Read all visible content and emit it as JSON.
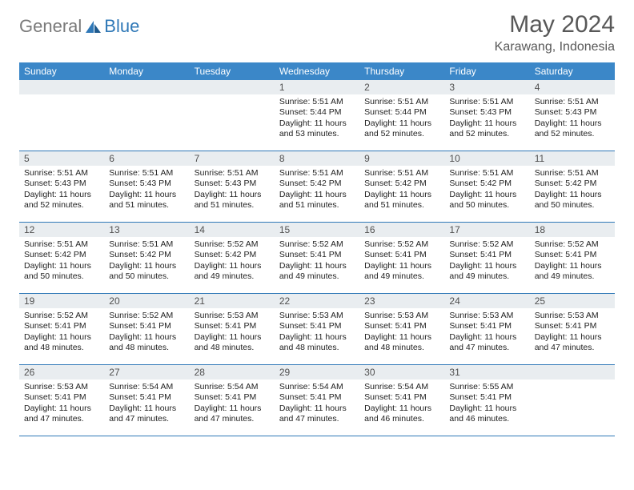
{
  "logo": {
    "part1": "General",
    "part2": "Blue"
  },
  "title": "May 2024",
  "location": "Karawang, Indonesia",
  "colors": {
    "header_bg": "#3b87c8",
    "header_text": "#ffffff",
    "daynum_bg": "#e9edf0",
    "daynum_text": "#505050",
    "body_text": "#222222",
    "title_text": "#585858",
    "rule": "#2f78b7",
    "logo_gray": "#7a7a7a",
    "logo_blue": "#2f78b7",
    "page_bg": "#ffffff"
  },
  "weekdays": [
    "Sunday",
    "Monday",
    "Tuesday",
    "Wednesday",
    "Thursday",
    "Friday",
    "Saturday"
  ],
  "weeks": [
    [
      {
        "n": "",
        "sr": "",
        "ss": "",
        "dl": ""
      },
      {
        "n": "",
        "sr": "",
        "ss": "",
        "dl": ""
      },
      {
        "n": "",
        "sr": "",
        "ss": "",
        "dl": ""
      },
      {
        "n": "1",
        "sr": "Sunrise: 5:51 AM",
        "ss": "Sunset: 5:44 PM",
        "dl": "Daylight: 11 hours and 53 minutes."
      },
      {
        "n": "2",
        "sr": "Sunrise: 5:51 AM",
        "ss": "Sunset: 5:44 PM",
        "dl": "Daylight: 11 hours and 52 minutes."
      },
      {
        "n": "3",
        "sr": "Sunrise: 5:51 AM",
        "ss": "Sunset: 5:43 PM",
        "dl": "Daylight: 11 hours and 52 minutes."
      },
      {
        "n": "4",
        "sr": "Sunrise: 5:51 AM",
        "ss": "Sunset: 5:43 PM",
        "dl": "Daylight: 11 hours and 52 minutes."
      }
    ],
    [
      {
        "n": "5",
        "sr": "Sunrise: 5:51 AM",
        "ss": "Sunset: 5:43 PM",
        "dl": "Daylight: 11 hours and 52 minutes."
      },
      {
        "n": "6",
        "sr": "Sunrise: 5:51 AM",
        "ss": "Sunset: 5:43 PM",
        "dl": "Daylight: 11 hours and 51 minutes."
      },
      {
        "n": "7",
        "sr": "Sunrise: 5:51 AM",
        "ss": "Sunset: 5:43 PM",
        "dl": "Daylight: 11 hours and 51 minutes."
      },
      {
        "n": "8",
        "sr": "Sunrise: 5:51 AM",
        "ss": "Sunset: 5:42 PM",
        "dl": "Daylight: 11 hours and 51 minutes."
      },
      {
        "n": "9",
        "sr": "Sunrise: 5:51 AM",
        "ss": "Sunset: 5:42 PM",
        "dl": "Daylight: 11 hours and 51 minutes."
      },
      {
        "n": "10",
        "sr": "Sunrise: 5:51 AM",
        "ss": "Sunset: 5:42 PM",
        "dl": "Daylight: 11 hours and 50 minutes."
      },
      {
        "n": "11",
        "sr": "Sunrise: 5:51 AM",
        "ss": "Sunset: 5:42 PM",
        "dl": "Daylight: 11 hours and 50 minutes."
      }
    ],
    [
      {
        "n": "12",
        "sr": "Sunrise: 5:51 AM",
        "ss": "Sunset: 5:42 PM",
        "dl": "Daylight: 11 hours and 50 minutes."
      },
      {
        "n": "13",
        "sr": "Sunrise: 5:51 AM",
        "ss": "Sunset: 5:42 PM",
        "dl": "Daylight: 11 hours and 50 minutes."
      },
      {
        "n": "14",
        "sr": "Sunrise: 5:52 AM",
        "ss": "Sunset: 5:42 PM",
        "dl": "Daylight: 11 hours and 49 minutes."
      },
      {
        "n": "15",
        "sr": "Sunrise: 5:52 AM",
        "ss": "Sunset: 5:41 PM",
        "dl": "Daylight: 11 hours and 49 minutes."
      },
      {
        "n": "16",
        "sr": "Sunrise: 5:52 AM",
        "ss": "Sunset: 5:41 PM",
        "dl": "Daylight: 11 hours and 49 minutes."
      },
      {
        "n": "17",
        "sr": "Sunrise: 5:52 AM",
        "ss": "Sunset: 5:41 PM",
        "dl": "Daylight: 11 hours and 49 minutes."
      },
      {
        "n": "18",
        "sr": "Sunrise: 5:52 AM",
        "ss": "Sunset: 5:41 PM",
        "dl": "Daylight: 11 hours and 49 minutes."
      }
    ],
    [
      {
        "n": "19",
        "sr": "Sunrise: 5:52 AM",
        "ss": "Sunset: 5:41 PM",
        "dl": "Daylight: 11 hours and 48 minutes."
      },
      {
        "n": "20",
        "sr": "Sunrise: 5:52 AM",
        "ss": "Sunset: 5:41 PM",
        "dl": "Daylight: 11 hours and 48 minutes."
      },
      {
        "n": "21",
        "sr": "Sunrise: 5:53 AM",
        "ss": "Sunset: 5:41 PM",
        "dl": "Daylight: 11 hours and 48 minutes."
      },
      {
        "n": "22",
        "sr": "Sunrise: 5:53 AM",
        "ss": "Sunset: 5:41 PM",
        "dl": "Daylight: 11 hours and 48 minutes."
      },
      {
        "n": "23",
        "sr": "Sunrise: 5:53 AM",
        "ss": "Sunset: 5:41 PM",
        "dl": "Daylight: 11 hours and 48 minutes."
      },
      {
        "n": "24",
        "sr": "Sunrise: 5:53 AM",
        "ss": "Sunset: 5:41 PM",
        "dl": "Daylight: 11 hours and 47 minutes."
      },
      {
        "n": "25",
        "sr": "Sunrise: 5:53 AM",
        "ss": "Sunset: 5:41 PM",
        "dl": "Daylight: 11 hours and 47 minutes."
      }
    ],
    [
      {
        "n": "26",
        "sr": "Sunrise: 5:53 AM",
        "ss": "Sunset: 5:41 PM",
        "dl": "Daylight: 11 hours and 47 minutes."
      },
      {
        "n": "27",
        "sr": "Sunrise: 5:54 AM",
        "ss": "Sunset: 5:41 PM",
        "dl": "Daylight: 11 hours and 47 minutes."
      },
      {
        "n": "28",
        "sr": "Sunrise: 5:54 AM",
        "ss": "Sunset: 5:41 PM",
        "dl": "Daylight: 11 hours and 47 minutes."
      },
      {
        "n": "29",
        "sr": "Sunrise: 5:54 AM",
        "ss": "Sunset: 5:41 PM",
        "dl": "Daylight: 11 hours and 47 minutes."
      },
      {
        "n": "30",
        "sr": "Sunrise: 5:54 AM",
        "ss": "Sunset: 5:41 PM",
        "dl": "Daylight: 11 hours and 46 minutes."
      },
      {
        "n": "31",
        "sr": "Sunrise: 5:55 AM",
        "ss": "Sunset: 5:41 PM",
        "dl": "Daylight: 11 hours and 46 minutes."
      },
      {
        "n": "",
        "sr": "",
        "ss": "",
        "dl": ""
      }
    ]
  ]
}
